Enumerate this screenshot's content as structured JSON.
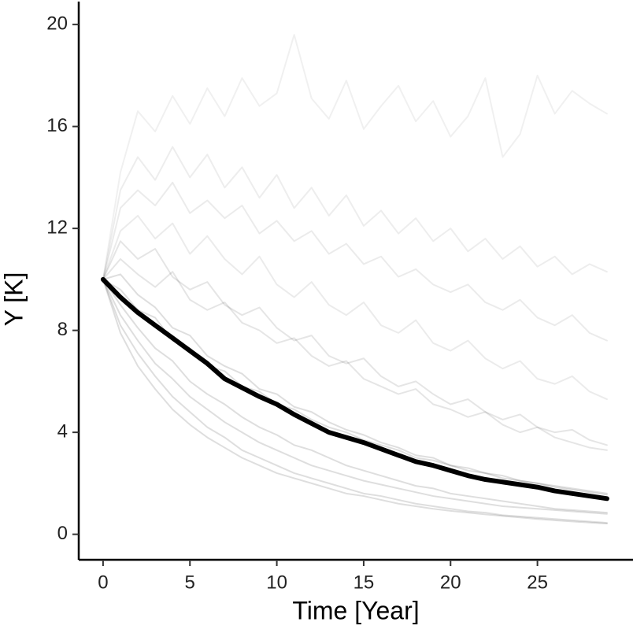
{
  "chart_data": {
    "type": "line",
    "x_label": "Time [Year]",
    "y_label": "Y [K]",
    "x": [
      0,
      1,
      2,
      3,
      4,
      5,
      6,
      7,
      8,
      9,
      10,
      11,
      12,
      13,
      14,
      15,
      16,
      17,
      18,
      19,
      20,
      21,
      22,
      23,
      24,
      25,
      26,
      27,
      28,
      29
    ],
    "xlim": [
      -1.4,
      30.5
    ],
    "xticks": [
      0,
      5,
      10,
      15,
      20,
      25
    ],
    "ylim": [
      -1.0,
      20.9
    ],
    "yticks": [
      0,
      4,
      8,
      12,
      16,
      20
    ],
    "grid": false,
    "series": [
      {
        "color": "#000000",
        "opacity": 0.13,
        "width": 2,
        "values": [
          10,
          8.2,
          7.1,
          6.2,
          5.4,
          4.8,
          4.2,
          3.8,
          3.3,
          3.0,
          2.7,
          2.4,
          2.2,
          2.0,
          1.8,
          1.6,
          1.5,
          1.35,
          1.2,
          1.1,
          1.0,
          0.9,
          0.85,
          0.75,
          0.7,
          0.65,
          0.6,
          0.55,
          0.5,
          0.45
        ]
      },
      {
        "color": "#000000",
        "opacity": 0.13,
        "width": 2,
        "values": [
          10,
          9.0,
          8.1,
          7.3,
          6.8,
          6.0,
          5.5,
          5.1,
          4.6,
          4.2,
          3.9,
          3.5,
          3.3,
          3.0,
          2.7,
          2.5,
          2.3,
          2.1,
          1.9,
          1.8,
          1.6,
          1.5,
          1.4,
          1.3,
          1.2,
          1.1,
          1.0,
          0.95,
          0.9,
          0.85
        ]
      },
      {
        "color": "#000000",
        "opacity": 0.13,
        "width": 2,
        "values": [
          10,
          10.2,
          9.4,
          8.9,
          8.1,
          7.8,
          7.0,
          6.6,
          6.3,
          5.7,
          5.5,
          5.0,
          4.8,
          4.4,
          4.1,
          3.9,
          3.6,
          3.4,
          3.1,
          3.0,
          2.7,
          2.6,
          2.4,
          2.3,
          2.1,
          2.0,
          1.9,
          1.8,
          1.7,
          1.6
        ]
      },
      {
        "color": "#000000",
        "opacity": 0.1,
        "width": 2,
        "values": [
          10,
          11.5,
          10.8,
          11.2,
          10.1,
          9.6,
          9.9,
          9.0,
          8.6,
          8.9,
          8.1,
          7.6,
          7.8,
          7.0,
          6.7,
          6.9,
          6.2,
          5.8,
          6.0,
          5.5,
          5.1,
          5.3,
          4.8,
          4.5,
          4.7,
          4.2,
          4.0,
          4.1,
          3.7,
          3.5
        ]
      },
      {
        "color": "#000000",
        "opacity": 0.08,
        "width": 2,
        "values": [
          10,
          12.8,
          13.5,
          12.9,
          13.8,
          12.6,
          13.1,
          12.4,
          12.9,
          11.8,
          12.3,
          11.5,
          11.9,
          11.0,
          11.4,
          10.6,
          10.9,
          10.1,
          10.4,
          9.8,
          9.5,
          9.8,
          9.1,
          8.8,
          9.2,
          8.5,
          8.2,
          8.6,
          7.9,
          7.6
        ]
      },
      {
        "color": "#000000",
        "opacity": 0.06,
        "width": 2,
        "values": [
          10,
          14.2,
          16.6,
          15.8,
          17.2,
          16.1,
          17.5,
          16.4,
          17.9,
          16.8,
          17.3,
          19.6,
          17.1,
          16.3,
          17.8,
          15.9,
          16.8,
          17.6,
          16.2,
          17.0,
          15.6,
          16.4,
          17.9,
          14.8,
          15.7,
          18.0,
          16.5,
          17.4,
          16.9,
          16.5
        ]
      },
      {
        "color": "#000000",
        "opacity": 0.13,
        "width": 2,
        "values": [
          10,
          8.6,
          7.6,
          6.7,
          6.1,
          5.4,
          4.9,
          4.4,
          4.0,
          3.6,
          3.3,
          3.0,
          2.7,
          2.5,
          2.3,
          2.1,
          1.95,
          1.8,
          1.65,
          1.5,
          1.4,
          1.3,
          1.2,
          1.1,
          1.05,
          1.0,
          0.95,
          0.9,
          0.85,
          0.8
        ]
      },
      {
        "color": "#000000",
        "opacity": 0.13,
        "width": 2,
        "values": [
          10,
          9.6,
          8.8,
          8.5,
          7.6,
          7.3,
          6.6,
          6.4,
          5.8,
          5.6,
          5.1,
          4.9,
          4.5,
          4.2,
          4.0,
          3.7,
          3.5,
          3.3,
          3.0,
          2.9,
          2.7,
          2.5,
          2.4,
          2.2,
          2.1,
          2.0,
          1.85,
          1.75,
          1.65,
          1.55
        ]
      },
      {
        "color": "#000000",
        "opacity": 0.1,
        "width": 2,
        "values": [
          10,
          10.8,
          10.2,
          9.7,
          10.3,
          9.2,
          8.8,
          9.1,
          8.3,
          8.0,
          7.5,
          7.7,
          7.0,
          6.6,
          6.8,
          6.1,
          5.8,
          5.5,
          5.7,
          5.1,
          4.9,
          4.6,
          4.8,
          4.3,
          4.0,
          4.2,
          3.8,
          3.6,
          3.4,
          3.3
        ]
      },
      {
        "color": "#000000",
        "opacity": 0.08,
        "width": 2,
        "values": [
          10,
          11.9,
          12.5,
          11.6,
          12.2,
          11.0,
          11.7,
          10.8,
          10.2,
          10.9,
          9.8,
          9.3,
          9.9,
          9.0,
          8.6,
          9.1,
          8.2,
          7.9,
          8.4,
          7.5,
          7.2,
          7.6,
          6.9,
          6.5,
          6.8,
          6.1,
          5.9,
          6.2,
          5.6,
          5.3
        ]
      },
      {
        "color": "#000000",
        "opacity": 0.07,
        "width": 2,
        "values": [
          10,
          13.5,
          14.8,
          13.9,
          15.2,
          14.0,
          14.9,
          13.6,
          14.4,
          13.2,
          14.1,
          12.8,
          13.6,
          12.5,
          13.3,
          12.1,
          12.7,
          11.8,
          12.4,
          11.5,
          12.0,
          11.1,
          11.6,
          10.8,
          11.3,
          10.5,
          10.9,
          10.2,
          10.6,
          10.3
        ]
      },
      {
        "color": "#000000",
        "opacity": 0.13,
        "width": 2,
        "values": [
          10,
          7.9,
          6.6,
          5.7,
          4.9,
          4.3,
          3.8,
          3.4,
          3.0,
          2.7,
          2.4,
          2.2,
          2.0,
          1.8,
          1.6,
          1.5,
          1.35,
          1.2,
          1.1,
          1.0,
          0.92,
          0.85,
          0.78,
          0.72,
          0.66,
          0.6,
          0.55,
          0.5,
          0.46,
          0.42
        ]
      },
      {
        "color": "#000000",
        "opacity": 1,
        "width": 6,
        "values": [
          10,
          9.3,
          8.7,
          8.2,
          7.7,
          7.2,
          6.7,
          6.1,
          5.75,
          5.4,
          5.1,
          4.7,
          4.35,
          4.0,
          3.8,
          3.6,
          3.35,
          3.1,
          2.85,
          2.7,
          2.5,
          2.3,
          2.15,
          2.05,
          1.95,
          1.85,
          1.7,
          1.6,
          1.5,
          1.4
        ]
      }
    ]
  }
}
